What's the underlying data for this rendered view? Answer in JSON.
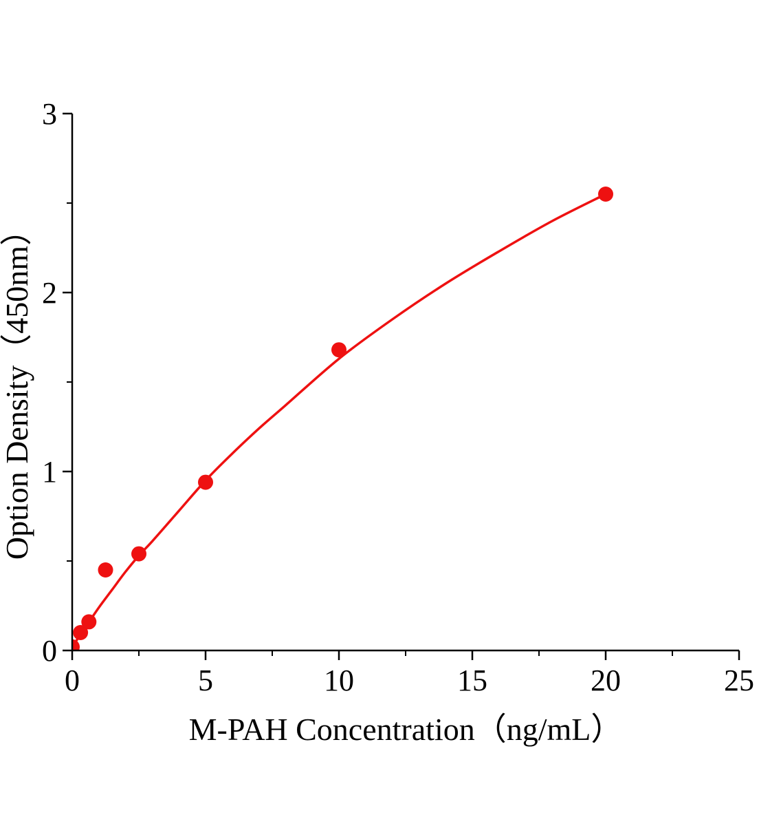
{
  "chart_data": {
    "type": "scatter",
    "title": "",
    "xlabel": "M-PAH Concentration（ng/mL）",
    "ylabel": "Option Density（450nm）",
    "xlim": [
      0,
      25
    ],
    "ylim": [
      0,
      3
    ],
    "x_tick_values": [
      0,
      5,
      10,
      15,
      20,
      25
    ],
    "x_tick_labels": [
      "0",
      "5",
      "10",
      "15",
      "20",
      "25"
    ],
    "x_minor_step": 2.5,
    "y_tick_values": [
      0,
      1,
      2,
      3
    ],
    "y_tick_labels": [
      "0",
      "1",
      "2",
      "3"
    ],
    "y_minor_step": 0.5,
    "grid": false,
    "legend": false,
    "colors": {
      "accent": "#ee1111",
      "axis": "#000000",
      "background": "#ffffff"
    },
    "series": [
      {
        "name": "fit-curve",
        "type": "line",
        "x": [
          0,
          0.5,
          1,
          1.5,
          2,
          2.5,
          3,
          4,
          5,
          6,
          7,
          8,
          10,
          12,
          14,
          16,
          18,
          20
        ],
        "y": [
          0.02,
          0.13,
          0.24,
          0.34,
          0.44,
          0.53,
          0.61,
          0.78,
          0.95,
          1.1,
          1.24,
          1.37,
          1.63,
          1.85,
          2.05,
          2.23,
          2.4,
          2.55
        ]
      },
      {
        "name": "standard-points",
        "type": "scatter",
        "x": [
          0,
          0.313,
          0.625,
          1.25,
          2.5,
          5,
          10,
          20
        ],
        "y": [
          0.02,
          0.1,
          0.16,
          0.45,
          0.54,
          0.94,
          1.68,
          2.55
        ]
      }
    ]
  }
}
